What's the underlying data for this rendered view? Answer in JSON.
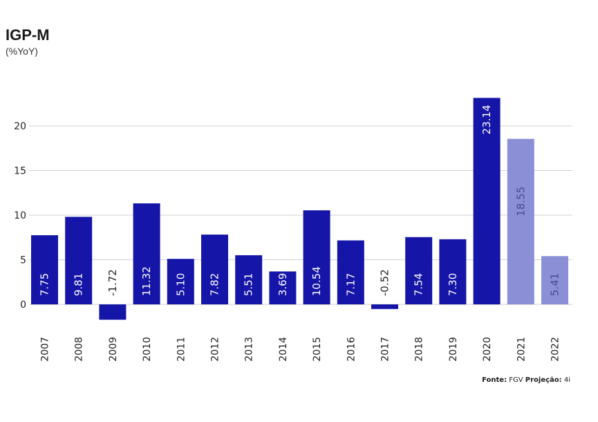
{
  "header": {
    "title": "IGP-M",
    "subtitle": "(%YoY)"
  },
  "source": {
    "fonte_label": "Fonte:",
    "fonte_value": "FGV",
    "projecao_label": "Projeção:",
    "projecao_value": "4i"
  },
  "colors": {
    "actual": "#1515a8",
    "projection": "#8b8fd6",
    "grid": "#d0d0d0",
    "label_actual": "#ffffff",
    "label_projection": "#4a4a8a"
  },
  "chart_data": {
    "type": "bar",
    "title": "IGP-M",
    "subtitle": "(%YoY)",
    "xlabel": "",
    "ylabel": "",
    "categories": [
      "2007",
      "2008",
      "2009",
      "2010",
      "2011",
      "2012",
      "2013",
      "2014",
      "2015",
      "2016",
      "2017",
      "2018",
      "2019",
      "2020",
      "2021",
      "2022"
    ],
    "values": [
      7.75,
      9.81,
      -1.72,
      11.32,
      5.1,
      7.82,
      5.51,
      3.69,
      10.54,
      7.17,
      -0.52,
      7.54,
      7.3,
      23.14,
      18.55,
      5.41
    ],
    "value_labels": [
      "7.75",
      "9.81",
      "-1.72",
      "11.32",
      "5.10",
      "7.82",
      "5.51",
      "3.69",
      "10.54",
      "7.17",
      "-0.52",
      "7.54",
      "7.30",
      "23.14",
      "18.55",
      "5.41"
    ],
    "projection": [
      false,
      false,
      false,
      false,
      false,
      false,
      false,
      false,
      false,
      false,
      false,
      false,
      false,
      false,
      true,
      true
    ],
    "yticks": [
      0,
      5,
      10,
      15,
      20
    ],
    "ylim": [
      -2,
      24
    ],
    "grid": true,
    "legend": "none"
  }
}
